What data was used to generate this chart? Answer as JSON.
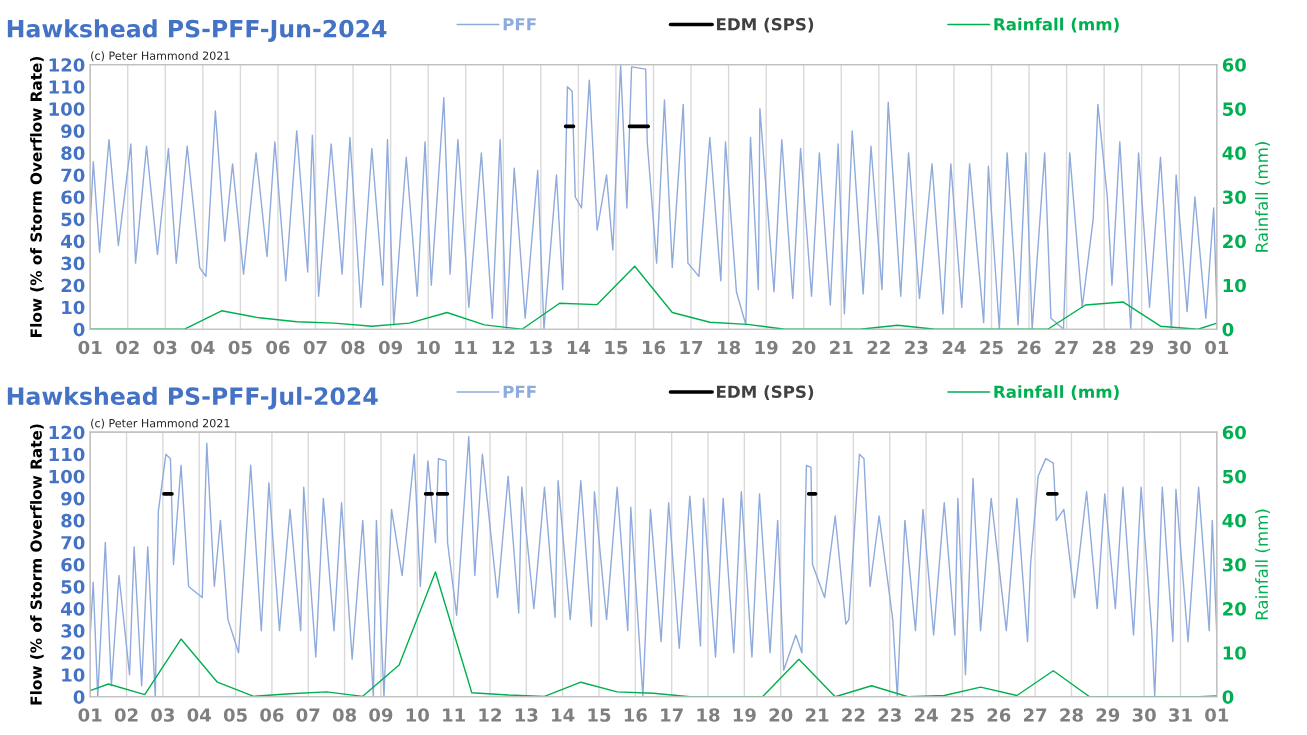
{
  "chart_data": [
    {
      "type": "line",
      "title": "Hawkshead PS-PFF-Jun-2024",
      "annotations": [
        "(c) Peter Hammond 2021"
      ],
      "ylabel": "Flow (% of Storm Overflow Rate)",
      "y2label": "Rainfall (mm)",
      "xlim": [
        "2024-06-01",
        "2024-07-01"
      ],
      "xticks": [
        {
          "value": "2024-06-01",
          "label": "01"
        },
        {
          "value": "2024-06-02",
          "label": "02"
        },
        {
          "value": "2024-06-03",
          "label": "03"
        },
        {
          "value": "2024-06-04",
          "label": "04"
        },
        {
          "value": "2024-06-05",
          "label": "05"
        },
        {
          "value": "2024-06-06",
          "label": "06"
        },
        {
          "value": "2024-06-07",
          "label": "07"
        },
        {
          "value": "2024-06-08",
          "label": "08"
        },
        {
          "value": "2024-06-09",
          "label": "09"
        },
        {
          "value": "2024-06-10",
          "label": "10"
        },
        {
          "value": "2024-06-11",
          "label": "11"
        },
        {
          "value": "2024-06-12",
          "label": "12"
        },
        {
          "value": "2024-06-13",
          "label": "13"
        },
        {
          "value": "2024-06-14",
          "label": "14"
        },
        {
          "value": "2024-06-15",
          "label": "15"
        },
        {
          "value": "2024-06-16",
          "label": "16"
        },
        {
          "value": "2024-06-17",
          "label": "17"
        },
        {
          "value": "2024-06-18",
          "label": "18"
        },
        {
          "value": "2024-06-19",
          "label": "19"
        },
        {
          "value": "2024-06-20",
          "label": "20"
        },
        {
          "value": "2024-06-21",
          "label": "21"
        },
        {
          "value": "2024-06-22",
          "label": "22"
        },
        {
          "value": "2024-06-23",
          "label": "23"
        },
        {
          "value": "2024-06-24",
          "label": "24"
        },
        {
          "value": "2024-06-25",
          "label": "25"
        },
        {
          "value": "2024-06-26",
          "label": "26"
        },
        {
          "value": "2024-06-27",
          "label": "27"
        },
        {
          "value": "2024-06-28",
          "label": "28"
        },
        {
          "value": "2024-06-29",
          "label": "29"
        },
        {
          "value": "2024-06-30",
          "label": "30"
        },
        {
          "value": "2024-07-01",
          "label": "01"
        }
      ],
      "ylim": [
        0,
        120
      ],
      "yticks": [
        0,
        10,
        20,
        30,
        40,
        50,
        60,
        70,
        80,
        90,
        100,
        110,
        120
      ],
      "y2lim": [
        0,
        60
      ],
      "y2ticks": [
        0,
        10,
        20,
        30,
        40,
        50,
        60
      ],
      "grid": "x",
      "legend": "top",
      "series": [
        {
          "name": "PFF",
          "type": "line",
          "color": "#8faadc",
          "x": [
            "2024-06-01T00:00",
            "2024-06-01T02:00",
            "2024-06-01T06:00",
            "2024-06-01T12:00",
            "2024-06-01T18:00",
            "2024-06-02T02:00",
            "2024-06-02T05:00",
            "2024-06-02T12:00",
            "2024-06-02T19:00",
            "2024-06-03T02:00",
            "2024-06-03T07:00",
            "2024-06-03T14:00",
            "2024-06-03T22:00",
            "2024-06-04T02:00",
            "2024-06-04T08:00",
            "2024-06-04T14:00",
            "2024-06-04T19:00",
            "2024-06-05T02:00",
            "2024-06-05T10:00",
            "2024-06-05T17:00",
            "2024-06-05T22:00",
            "2024-06-06T05:00",
            "2024-06-06T12:00",
            "2024-06-06T19:00",
            "2024-06-06T22:00",
            "2024-06-07T02:00",
            "2024-06-07T10:00",
            "2024-06-07T17:00",
            "2024-06-07T22:00",
            "2024-06-08T05:00",
            "2024-06-08T12:00",
            "2024-06-08T19:00",
            "2024-06-08T22:00",
            "2024-06-09T02:00",
            "2024-06-09T10:00",
            "2024-06-09T17:00",
            "2024-06-09T22:00",
            "2024-06-10T02:00",
            "2024-06-10T10:00",
            "2024-06-10T14:00",
            "2024-06-10T19:00",
            "2024-06-11T02:00",
            "2024-06-11T10:00",
            "2024-06-11T17:00",
            "2024-06-11T22:00",
            "2024-06-12T02:00",
            "2024-06-12T07:00",
            "2024-06-12T14:00",
            "2024-06-12T22:00",
            "2024-06-13T02:00",
            "2024-06-13T10:00",
            "2024-06-13T14:00",
            "2024-06-13T17:00",
            "2024-06-13T20:00",
            "2024-06-13T22:00",
            "2024-06-14T02:00",
            "2024-06-14T07:00",
            "2024-06-14T12:00",
            "2024-06-14T18:00",
            "2024-06-14T22:00",
            "2024-06-15T03:00",
            "2024-06-15T07:00",
            "2024-06-15T10:00",
            "2024-06-15T19:00",
            "2024-06-15T20:00",
            "2024-06-16T02:00",
            "2024-06-16T07:00",
            "2024-06-16T12:00",
            "2024-06-16T19:00",
            "2024-06-16T22:00",
            "2024-06-17T05:00",
            "2024-06-17T12:00",
            "2024-06-17T19:00",
            "2024-06-17T22:00",
            "2024-06-18T05:00",
            "2024-06-18T11:00",
            "2024-06-18T14:00",
            "2024-06-18T19:00",
            "2024-06-18T20:00",
            "2024-06-19T05:00",
            "2024-06-19T10:00",
            "2024-06-19T17:00",
            "2024-06-19T22:00",
            "2024-06-20T05:00",
            "2024-06-20T10:00",
            "2024-06-20T17:00",
            "2024-06-20T22:00",
            "2024-06-21T02:00",
            "2024-06-21T07:00",
            "2024-06-21T14:00",
            "2024-06-21T19:00",
            "2024-06-22T02:00",
            "2024-06-22T06:00",
            "2024-06-22T14:00",
            "2024-06-22T19:00",
            "2024-06-23T02:00",
            "2024-06-23T10:00",
            "2024-06-23T17:00",
            "2024-06-23T22:00",
            "2024-06-24T05:00",
            "2024-06-24T10:00",
            "2024-06-24T19:00",
            "2024-06-24T22:00",
            "2024-06-25T05:00",
            "2024-06-25T10:00",
            "2024-06-25T17:00",
            "2024-06-25T22:00",
            "2024-06-26T02:00",
            "2024-06-26T10:00",
            "2024-06-26T14:00",
            "2024-06-26T22:00",
            "2024-06-27T02:00",
            "2024-06-27T10:00",
            "2024-06-27T17:00",
            "2024-06-27T20:00",
            "2024-06-28T02:00",
            "2024-06-28T05:00",
            "2024-06-28T10:00",
            "2024-06-28T17:00",
            "2024-06-28T22:00",
            "2024-06-29T05:00",
            "2024-06-29T12:00",
            "2024-06-29T19:00",
            "2024-06-29T22:00",
            "2024-06-30T05:00",
            "2024-06-30T10:00",
            "2024-06-30T17:00",
            "2024-06-30T22:00",
            "2024-07-01T00:00"
          ],
          "values": [
            48,
            76,
            35,
            86,
            38,
            84,
            30,
            83,
            34,
            82,
            30,
            83,
            28,
            24,
            99,
            40,
            75,
            25,
            80,
            33,
            85,
            22,
            90,
            26,
            88,
            15,
            84,
            25,
            87,
            10,
            82,
            20,
            86,
            2,
            78,
            15,
            85,
            20,
            105,
            25,
            86,
            10,
            80,
            5,
            86,
            0,
            73,
            5,
            72,
            0,
            70,
            18,
            110,
            108,
            60,
            55,
            113,
            45,
            70,
            36,
            120,
            55,
            119,
            118,
            85,
            30,
            104,
            28,
            102,
            30,
            24,
            87,
            22,
            85,
            17,
            2,
            87,
            18,
            100,
            17,
            86,
            14,
            82,
            15,
            80,
            11,
            84,
            7,
            90,
            16,
            83,
            18,
            103,
            15,
            80,
            14,
            75,
            7,
            75,
            10,
            75,
            3,
            74,
            0,
            80,
            2,
            80,
            0,
            80,
            5,
            0,
            80,
            10,
            50,
            102,
            60,
            20,
            85,
            0,
            80,
            10,
            78,
            0,
            70,
            8,
            60,
            5,
            55,
            10
          ]
        },
        {
          "name": "EDM (SPS)",
          "type": "line",
          "color": "#000000",
          "x": [
            "2024-06-13T15:50",
            "2024-06-13T20:53",
            "2024-06-13T21:36",
            "2024-06-15T08:38",
            "2024-06-15T20:38"
          ],
          "values": [
            92,
            92,
            null,
            92,
            92
          ]
        },
        {
          "name": "Rainfall (mm)",
          "type": "line",
          "axis": "y2",
          "color": "#00b050",
          "x": [
            "2024-06-01T00:00",
            "2024-06-01T12:00",
            "2024-06-02T12:00",
            "2024-06-03T12:00",
            "2024-06-04T12:00",
            "2024-06-05T12:00",
            "2024-06-06T12:00",
            "2024-06-07T12:00",
            "2024-06-08T12:00",
            "2024-06-09T12:00",
            "2024-06-10T12:00",
            "2024-06-11T12:00",
            "2024-06-12T12:00",
            "2024-06-13T12:00",
            "2024-06-14T12:00",
            "2024-06-15T12:00",
            "2024-06-16T12:00",
            "2024-06-17T12:00",
            "2024-06-18T12:00",
            "2024-06-19T12:00",
            "2024-06-20T12:00",
            "2024-06-21T12:00",
            "2024-06-22T12:00",
            "2024-06-23T12:00",
            "2024-06-24T12:00",
            "2024-06-25T12:00",
            "2024-06-26T12:00",
            "2024-06-27T12:00",
            "2024-06-28T12:00",
            "2024-06-29T12:00",
            "2024-06-30T12:00",
            "2024-07-01T00:00"
          ],
          "values": [
            0,
            0,
            0,
            0,
            4.2,
            2.6,
            1.7,
            1.4,
            0.7,
            1.4,
            3.8,
            1.0,
            0,
            5.9,
            5.6,
            14.3,
            3.8,
            1.6,
            1.1,
            0,
            0,
            0,
            0.9,
            0,
            0,
            0,
            0,
            5.5,
            6.2,
            0.7,
            0,
            1.4
          ]
        }
      ]
    },
    {
      "type": "line",
      "title": "Hawkshead PS-PFF-Jul-2024",
      "annotations": [
        "(c) Peter Hammond 2021"
      ],
      "ylabel": "Flow (% of Storm Overflow Rate)",
      "y2label": "Rainfall (mm)",
      "xlim": [
        "2024-07-01",
        "2024-08-01"
      ],
      "xticks": [
        {
          "value": "2024-07-01",
          "label": "01"
        },
        {
          "value": "2024-07-02",
          "label": "02"
        },
        {
          "value": "2024-07-03",
          "label": "03"
        },
        {
          "value": "2024-07-04",
          "label": "04"
        },
        {
          "value": "2024-07-05",
          "label": "05"
        },
        {
          "value": "2024-07-06",
          "label": "06"
        },
        {
          "value": "2024-07-07",
          "label": "07"
        },
        {
          "value": "2024-07-08",
          "label": "08"
        },
        {
          "value": "2024-07-09",
          "label": "09"
        },
        {
          "value": "2024-07-10",
          "label": "10"
        },
        {
          "value": "2024-07-11",
          "label": "11"
        },
        {
          "value": "2024-07-12",
          "label": "12"
        },
        {
          "value": "2024-07-13",
          "label": "13"
        },
        {
          "value": "2024-07-14",
          "label": "14"
        },
        {
          "value": "2024-07-15",
          "label": "15"
        },
        {
          "value": "2024-07-16",
          "label": "16"
        },
        {
          "value": "2024-07-17",
          "label": "17"
        },
        {
          "value": "2024-07-18",
          "label": "18"
        },
        {
          "value": "2024-07-19",
          "label": "19"
        },
        {
          "value": "2024-07-20",
          "label": "20"
        },
        {
          "value": "2024-07-21",
          "label": "21"
        },
        {
          "value": "2024-07-22",
          "label": "22"
        },
        {
          "value": "2024-07-23",
          "label": "23"
        },
        {
          "value": "2024-07-24",
          "label": "24"
        },
        {
          "value": "2024-07-25",
          "label": "25"
        },
        {
          "value": "2024-07-26",
          "label": "26"
        },
        {
          "value": "2024-07-27",
          "label": "27"
        },
        {
          "value": "2024-07-28",
          "label": "28"
        },
        {
          "value": "2024-07-29",
          "label": "29"
        },
        {
          "value": "2024-07-30",
          "label": "30"
        },
        {
          "value": "2024-07-31",
          "label": "31"
        },
        {
          "value": "2024-08-01",
          "label": "01"
        }
      ],
      "ylim": [
        0,
        120
      ],
      "yticks": [
        0,
        10,
        20,
        30,
        40,
        50,
        60,
        70,
        80,
        90,
        100,
        110,
        120
      ],
      "y2lim": [
        0,
        60
      ],
      "y2ticks": [
        0,
        10,
        20,
        30,
        40,
        50,
        60
      ],
      "grid": "x",
      "legend": "top",
      "series": [
        {
          "name": "PFF",
          "type": "line",
          "color": "#8faadc",
          "x": [
            "2024-07-01T00:00",
            "2024-07-01T02:00",
            "2024-07-01T05:00",
            "2024-07-01T10:00",
            "2024-07-01T14:00",
            "2024-07-01T19:00",
            "2024-07-02T02:00",
            "2024-07-02T05:00",
            "2024-07-02T10:00",
            "2024-07-02T14:00",
            "2024-07-02T19:00",
            "2024-07-02T21:00",
            "2024-07-03T02:00",
            "2024-07-03T05:00",
            "2024-07-03T07:00",
            "2024-07-03T12:00",
            "2024-07-03T17:00",
            "2024-07-04T02:00",
            "2024-07-04T05:00",
            "2024-07-04T10:00",
            "2024-07-04T14:00",
            "2024-07-04T19:00",
            "2024-07-05T02:00",
            "2024-07-05T10:00",
            "2024-07-05T17:00",
            "2024-07-05T22:00",
            "2024-07-06T05:00",
            "2024-07-06T12:00",
            "2024-07-06T19:00",
            "2024-07-06T21:00",
            "2024-07-07T05:00",
            "2024-07-07T10:00",
            "2024-07-07T17:00",
            "2024-07-07T22:00",
            "2024-07-08T05:00",
            "2024-07-08T12:00",
            "2024-07-08T19:00",
            "2024-07-08T21:00",
            "2024-07-09T02:00",
            "2024-07-09T07:00",
            "2024-07-09T14:00",
            "2024-07-09T22:00",
            "2024-07-10T02:00",
            "2024-07-10T07:00",
            "2024-07-10T12:00",
            "2024-07-10T14:00",
            "2024-07-10T19:00",
            "2024-07-10T20:00",
            "2024-07-11T02:00",
            "2024-07-11T10:00",
            "2024-07-11T14:00",
            "2024-07-11T19:00",
            "2024-07-12T05:00",
            "2024-07-12T12:00",
            "2024-07-12T19:00",
            "2024-07-12T21:00",
            "2024-07-13T05:00",
            "2024-07-13T12:00",
            "2024-07-13T19:00",
            "2024-07-13T21:00",
            "2024-07-14T05:00",
            "2024-07-14T12:00",
            "2024-07-14T19:00",
            "2024-07-14T21:00",
            "2024-07-15T05:00",
            "2024-07-15T12:00",
            "2024-07-15T19:00",
            "2024-07-15T21:00",
            "2024-07-16T05:00",
            "2024-07-16T10:00",
            "2024-07-16T17:00",
            "2024-07-16T22:00",
            "2024-07-17T05:00",
            "2024-07-17T12:00",
            "2024-07-17T19:00",
            "2024-07-17T21:00",
            "2024-07-18T05:00",
            "2024-07-18T10:00",
            "2024-07-18T17:00",
            "2024-07-18T22:00",
            "2024-07-19T05:00",
            "2024-07-19T10:00",
            "2024-07-19T17:00",
            "2024-07-19T22:00",
            "2024-07-20T02:00",
            "2024-07-20T10:00",
            "2024-07-20T14:00",
            "2024-07-20T17:00",
            "2024-07-20T20:00",
            "2024-07-20T21:00",
            "2024-07-21T05:00",
            "2024-07-21T12:00",
            "2024-07-21T19:00",
            "2024-07-21T21:00",
            "2024-07-22T02:00",
            "2024-07-22T04:00",
            "2024-07-22T07:00",
            "2024-07-22T11:00",
            "2024-07-22T17:00",
            "2024-07-23T02:00",
            "2024-07-23T05:00",
            "2024-07-23T10:00",
            "2024-07-23T17:00",
            "2024-07-23T22:00",
            "2024-07-24T05:00",
            "2024-07-24T12:00",
            "2024-07-24T19:00",
            "2024-07-24T21:00",
            "2024-07-25T02:00",
            "2024-07-25T07:00",
            "2024-07-25T12:00",
            "2024-07-25T19:00",
            "2024-07-26T05:00",
            "2024-07-26T12:00",
            "2024-07-26T19:00",
            "2024-07-26T21:00",
            "2024-07-27T02:00",
            "2024-07-27T07:00",
            "2024-07-27T12:00",
            "2024-07-27T14:00",
            "2024-07-27T19:00",
            "2024-07-28T02:00",
            "2024-07-28T10:00",
            "2024-07-28T17:00",
            "2024-07-28T22:00",
            "2024-07-29T05:00",
            "2024-07-29T10:00",
            "2024-07-29T17:00",
            "2024-07-29T22:00",
            "2024-07-30T05:00",
            "2024-07-30T07:00",
            "2024-07-30T12:00",
            "2024-07-30T19:00",
            "2024-07-30T21:00",
            "2024-07-31T05:00",
            "2024-07-31T12:00",
            "2024-07-31T19:00",
            "2024-07-31T21:00",
            "2024-08-01T00:00"
          ],
          "values": [
            28,
            52,
            0,
            70,
            5,
            55,
            10,
            68,
            5,
            68,
            0,
            84,
            110,
            108,
            60,
            105,
            50,
            45,
            115,
            50,
            80,
            35,
            20,
            105,
            30,
            97,
            30,
            85,
            30,
            95,
            18,
            90,
            30,
            88,
            17,
            80,
            0,
            80,
            0,
            85,
            55,
            110,
            50,
            107,
            70,
            108,
            107,
            70,
            37,
            118,
            55,
            110,
            45,
            100,
            38,
            95,
            40,
            95,
            36,
            98,
            35,
            98,
            32,
            93,
            35,
            95,
            30,
            86,
            0,
            85,
            25,
            88,
            22,
            91,
            23,
            90,
            18,
            90,
            20,
            93,
            18,
            92,
            20,
            80,
            12,
            28,
            20,
            105,
            104,
            60,
            45,
            82,
            33,
            35,
            90,
            110,
            108,
            50,
            82,
            35,
            0,
            80,
            30,
            85,
            28,
            88,
            28,
            90,
            10,
            99,
            30,
            90,
            30,
            90,
            25,
            60,
            100,
            108,
            106,
            80,
            85,
            45,
            93,
            40,
            92,
            40,
            95,
            28,
            95,
            30,
            0,
            95,
            25,
            94,
            25,
            95,
            30,
            80,
            28
          ]
        },
        {
          "name": "EDM (SPS)",
          "type": "line",
          "color": "#000000",
          "x": [
            "2024-07-03T00:43",
            "2024-07-03T06:00",
            "2024-07-03T07:12",
            "2024-07-10T05:31",
            "2024-07-10T09:50",
            "2024-07-10T10:48",
            "2024-07-10T13:26",
            "2024-07-10T19:55",
            "2024-07-10T21:36",
            "2024-07-20T18:29",
            "2024-07-20T23:02",
            "2024-07-21T00:00",
            "2024-07-27T08:24",
            "2024-07-27T14:24"
          ],
          "values": [
            92,
            92,
            null,
            92,
            92,
            null,
            92,
            92,
            null,
            92,
            92,
            null,
            92,
            92
          ]
        },
        {
          "name": "Rainfall (mm)",
          "type": "line",
          "axis": "y2",
          "color": "#00b050",
          "x": [
            "2024-07-01T00:00",
            "2024-07-01T12:00",
            "2024-07-02T12:00",
            "2024-07-03T12:00",
            "2024-07-04T12:00",
            "2024-07-05T12:00",
            "2024-07-06T12:00",
            "2024-07-07T12:00",
            "2024-07-08T12:00",
            "2024-07-09T12:00",
            "2024-07-10T12:00",
            "2024-07-11T12:00",
            "2024-07-12T12:00",
            "2024-07-13T12:00",
            "2024-07-14T12:00",
            "2024-07-15T12:00",
            "2024-07-16T12:00",
            "2024-07-17T12:00",
            "2024-07-18T12:00",
            "2024-07-19T12:00",
            "2024-07-20T12:00",
            "2024-07-21T12:00",
            "2024-07-22T12:00",
            "2024-07-23T12:00",
            "2024-07-24T12:00",
            "2024-07-25T12:00",
            "2024-07-26T12:00",
            "2024-07-27T12:00",
            "2024-07-28T12:00",
            "2024-07-29T12:00",
            "2024-07-30T12:00",
            "2024-07-31T12:00",
            "2024-08-01T00:00"
          ],
          "values": [
            1.4,
            2.9,
            0.5,
            13.1,
            3.3,
            0.1,
            0.7,
            1.1,
            0.1,
            7.2,
            28.3,
            0.9,
            0.4,
            0.1,
            3.3,
            1.1,
            0.8,
            0,
            0,
            0,
            8.5,
            0,
            2.5,
            0,
            0.3,
            2.2,
            0.3,
            5.9,
            0,
            0,
            0,
            0,
            0.2
          ]
        }
      ]
    }
  ]
}
